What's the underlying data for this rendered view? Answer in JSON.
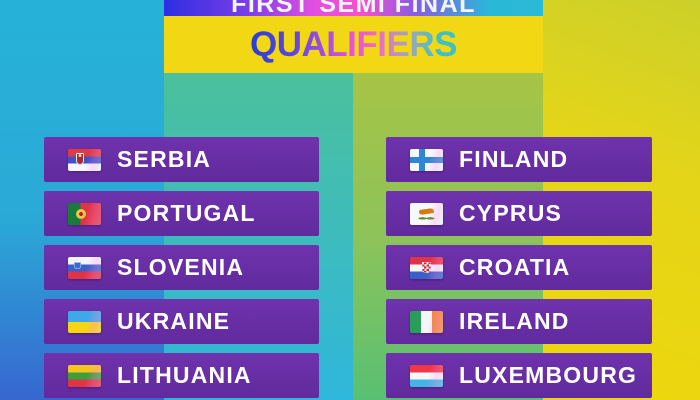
{
  "header": {
    "top_line": "FIRST SEMI FINAL",
    "title": "QUALIFIERS"
  },
  "columns": {
    "left": [
      {
        "name": "SERBIA",
        "flag": "serbia"
      },
      {
        "name": "PORTUGAL",
        "flag": "portugal"
      },
      {
        "name": "SLOVENIA",
        "flag": "slovenia"
      },
      {
        "name": "UKRAINE",
        "flag": "ukraine"
      },
      {
        "name": "LITHUANIA",
        "flag": "lithuania"
      }
    ],
    "right": [
      {
        "name": "FINLAND",
        "flag": "finland"
      },
      {
        "name": "CYPRUS",
        "flag": "cyprus"
      },
      {
        "name": "CROATIA",
        "flag": "croatia"
      },
      {
        "name": "IRELAND",
        "flag": "ireland"
      },
      {
        "name": "LUXEMBOURG",
        "flag": "luxembourg"
      }
    ]
  },
  "colors": {
    "card_purple": "#6a2fa6",
    "header_yellow": "#f2d714",
    "background_teal": "#26b2d8",
    "background_blue": "#3767d0",
    "background_green": "#51c28b",
    "background_olive": "#b2c43d",
    "background_yellow": "#eed60c",
    "strip_gradient": [
      "#2d2ee2",
      "#e44fe0",
      "#2ab8d8"
    ],
    "title_gradient": [
      "#2b3fd6",
      "#e853d8",
      "#3ac2c6"
    ]
  }
}
